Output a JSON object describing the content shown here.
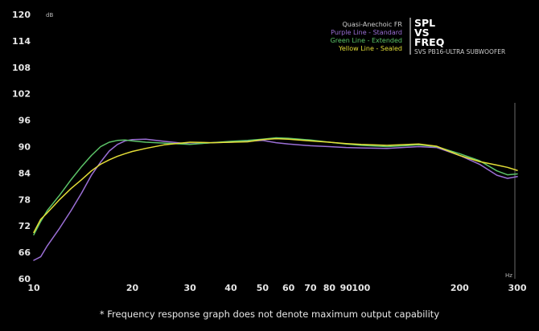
{
  "chart_data": {
    "type": "line",
    "title": "",
    "xlabel": "",
    "ylabel": "",
    "x_unit": "Hz",
    "y_unit": "dB",
    "x_scale": "log",
    "xlim": [
      10,
      300
    ],
    "ylim": [
      60,
      120
    ],
    "x_ticks": [
      10,
      20,
      30,
      40,
      50,
      60,
      70,
      80,
      90,
      100,
      200,
      300
    ],
    "y_ticks": [
      60,
      66,
      72,
      78,
      84,
      90,
      96,
      102,
      108,
      114,
      120
    ],
    "grid": false,
    "legend": {
      "placement": "top-right",
      "title": "Quasi-Anechoic FR",
      "entries": [
        {
          "label": "Purple Line - Standard",
          "color": "#9b6fd6"
        },
        {
          "label": "Green Line - Extended",
          "color": "#5cc468"
        },
        {
          "label": "Yellow Line - Sealed",
          "color": "#e4de37"
        }
      ]
    },
    "series": [
      {
        "name": "Purple Line - Standard",
        "color": "#9b6fd6",
        "x": [
          10,
          10.5,
          11,
          12,
          13,
          14,
          15,
          16,
          17,
          18,
          19,
          20,
          22,
          25,
          30,
          35,
          40,
          45,
          50,
          55,
          60,
          70,
          80,
          90,
          100,
          120,
          150,
          170,
          200,
          230,
          260,
          280,
          300
        ],
        "y": [
          64.2,
          65.0,
          67.5,
          71.5,
          75.5,
          79.5,
          83.5,
          86.5,
          89.0,
          90.5,
          91.3,
          91.6,
          91.7,
          91.2,
          90.6,
          90.9,
          91.0,
          91.2,
          91.4,
          90.9,
          90.6,
          90.2,
          90.0,
          89.8,
          89.7,
          89.6,
          90.0,
          89.8,
          88.0,
          86.0,
          83.5,
          82.8,
          83.2
        ]
      },
      {
        "name": "Green Line - Extended",
        "color": "#5cc468",
        "x": [
          10,
          10.5,
          11,
          12,
          13,
          14,
          15,
          16,
          17,
          18,
          19,
          20,
          22,
          25,
          30,
          35,
          40,
          45,
          50,
          55,
          60,
          70,
          80,
          90,
          100,
          120,
          150,
          170,
          200,
          230,
          260,
          280,
          300
        ],
        "y": [
          70.0,
          73.0,
          75.5,
          79.0,
          82.5,
          85.5,
          88.0,
          90.0,
          91.0,
          91.4,
          91.5,
          91.3,
          91.0,
          90.8,
          90.5,
          90.9,
          91.2,
          91.4,
          91.7,
          92.0,
          91.9,
          91.5,
          91.0,
          90.6,
          90.3,
          90.0,
          90.4,
          90.0,
          88.4,
          86.8,
          84.5,
          83.6,
          83.8
        ]
      },
      {
        "name": "Yellow Line - Sealed",
        "color": "#e4de37",
        "x": [
          10,
          10.5,
          11,
          12,
          13,
          14,
          15,
          16,
          17,
          18,
          19,
          20,
          22,
          25,
          30,
          35,
          40,
          45,
          50,
          55,
          60,
          70,
          80,
          90,
          100,
          120,
          150,
          170,
          200,
          230,
          260,
          280,
          300
        ],
        "y": [
          70.5,
          73.5,
          75.0,
          78.0,
          80.5,
          82.5,
          84.5,
          86.0,
          87.0,
          87.8,
          88.4,
          88.9,
          89.6,
          90.4,
          91.0,
          90.9,
          91.0,
          91.1,
          91.6,
          91.8,
          91.7,
          91.3,
          91.0,
          90.7,
          90.5,
          90.3,
          90.6,
          90.1,
          88.0,
          86.6,
          85.8,
          85.3,
          84.6
        ]
      }
    ]
  },
  "brand": {
    "line1": "SPL",
    "line2": "VS",
    "line3": "FREQ",
    "subtitle": "SVS PB16-ULTRA SUBWOOFER"
  },
  "footnote": "* Frequency response graph does not denote maximum output capability"
}
